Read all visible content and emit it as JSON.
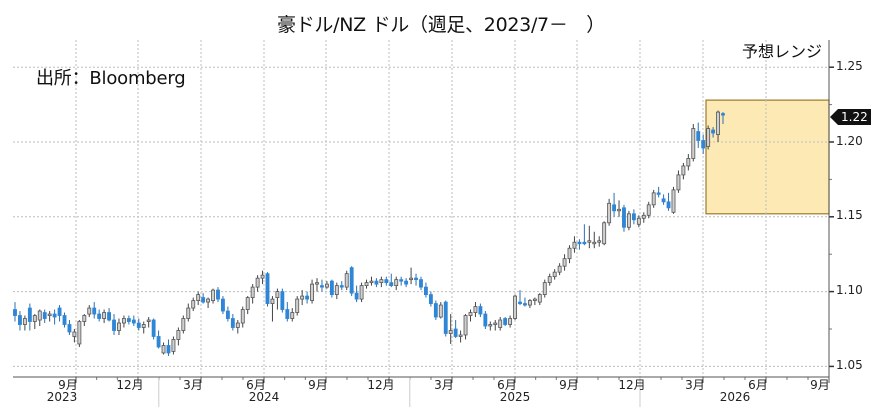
{
  "title": "豪ドル/NZ ドル（週足、2023/7－　）",
  "source_note": "出所：Bloomberg",
  "forecast_label": "予想レンジ",
  "last_price_badge": "1.22",
  "colors": {
    "up_body": "#d0d0d0",
    "up_outline": "#555555",
    "down_body": "#2f86d6",
    "forecast_fill": "#fde9b4",
    "forecast_border": "#9a7a2a",
    "grid": "#bdbdbd",
    "axis": "#555555"
  },
  "y_axis": {
    "ticks": [
      "1.25",
      "1.20",
      "1.15",
      "1.10",
      "1.05"
    ]
  },
  "x_axis": {
    "month_ticks": [
      "9月",
      "12月",
      "3月",
      "6月",
      "9月",
      "12月",
      "3月",
      "6月",
      "9月",
      "12月",
      "3月",
      "6月",
      "9月"
    ],
    "year_labels": [
      "2023",
      "2024",
      "2025",
      "2026"
    ]
  },
  "chart_data": {
    "type": "candlestick",
    "title": "豪ドル/NZ ドル（週足、2023/7－　）",
    "xlabel": "",
    "ylabel": "",
    "ylim": [
      1.043,
      1.268
    ],
    "grid": true,
    "y_ticks": [
      1.05,
      1.1,
      1.15,
      1.2,
      1.25
    ],
    "x_ticks": [
      "2023-09",
      "2023-12",
      "2024-03",
      "2024-06",
      "2024-09",
      "2024-12",
      "2025-03",
      "2025-06",
      "2025-09",
      "2025-12",
      "2026-03",
      "2026-06",
      "2026-09"
    ],
    "annotations": [
      "出所：Bloomberg",
      "予想レンジ",
      "1.22 (last price)"
    ],
    "forecast_range": {
      "label": "予想レンジ",
      "x_start": "2026-03",
      "x_end": "2026-09",
      "low": 1.152,
      "high": 1.228
    },
    "candles": [
      {
        "o": 1.088,
        "h": 1.093,
        "l": 1.08,
        "c": 1.084
      },
      {
        "o": 1.084,
        "h": 1.087,
        "l": 1.074,
        "c": 1.078
      },
      {
        "o": 1.078,
        "h": 1.084,
        "l": 1.074,
        "c": 1.082
      },
      {
        "o": 1.089,
        "h": 1.092,
        "l": 1.074,
        "c": 1.08
      },
      {
        "o": 1.08,
        "h": 1.085,
        "l": 1.075,
        "c": 1.084
      },
      {
        "o": 1.081,
        "h": 1.088,
        "l": 1.077,
        "c": 1.087
      },
      {
        "o": 1.086,
        "h": 1.088,
        "l": 1.079,
        "c": 1.082
      },
      {
        "o": 1.084,
        "h": 1.087,
        "l": 1.08,
        "c": 1.085
      },
      {
        "o": 1.085,
        "h": 1.088,
        "l": 1.078,
        "c": 1.083
      },
      {
        "o": 1.089,
        "h": 1.091,
        "l": 1.08,
        "c": 1.084
      },
      {
        "o": 1.084,
        "h": 1.086,
        "l": 1.076,
        "c": 1.078
      },
      {
        "o": 1.078,
        "h": 1.081,
        "l": 1.071,
        "c": 1.073
      },
      {
        "o": 1.07,
        "h": 1.075,
        "l": 1.066,
        "c": 1.073
      },
      {
        "o": 1.065,
        "h": 1.081,
        "l": 1.063,
        "c": 1.08
      },
      {
        "o": 1.08,
        "h": 1.085,
        "l": 1.077,
        "c": 1.084
      },
      {
        "o": 1.085,
        "h": 1.091,
        "l": 1.083,
        "c": 1.089
      },
      {
        "o": 1.089,
        "h": 1.093,
        "l": 1.082,
        "c": 1.085
      },
      {
        "o": 1.085,
        "h": 1.088,
        "l": 1.08,
        "c": 1.082
      },
      {
        "o": 1.082,
        "h": 1.088,
        "l": 1.079,
        "c": 1.086
      },
      {
        "o": 1.086,
        "h": 1.089,
        "l": 1.08,
        "c": 1.081
      },
      {
        "o": 1.081,
        "h": 1.085,
        "l": 1.071,
        "c": 1.074
      },
      {
        "o": 1.074,
        "h": 1.082,
        "l": 1.071,
        "c": 1.079
      },
      {
        "o": 1.079,
        "h": 1.084,
        "l": 1.076,
        "c": 1.082
      },
      {
        "o": 1.082,
        "h": 1.084,
        "l": 1.078,
        "c": 1.08
      },
      {
        "o": 1.081,
        "h": 1.084,
        "l": 1.077,
        "c": 1.079
      },
      {
        "o": 1.079,
        "h": 1.082,
        "l": 1.074,
        "c": 1.076
      },
      {
        "o": 1.076,
        "h": 1.08,
        "l": 1.072,
        "c": 1.078
      },
      {
        "o": 1.08,
        "h": 1.083,
        "l": 1.076,
        "c": 1.081
      },
      {
        "o": 1.081,
        "h": 1.082,
        "l": 1.068,
        "c": 1.07
      },
      {
        "o": 1.07,
        "h": 1.074,
        "l": 1.062,
        "c": 1.063
      },
      {
        "o": 1.059,
        "h": 1.066,
        "l": 1.058,
        "c": 1.064
      },
      {
        "o": 1.064,
        "h": 1.068,
        "l": 1.057,
        "c": 1.059
      },
      {
        "o": 1.06,
        "h": 1.07,
        "l": 1.058,
        "c": 1.068
      },
      {
        "o": 1.068,
        "h": 1.076,
        "l": 1.064,
        "c": 1.074
      },
      {
        "o": 1.074,
        "h": 1.084,
        "l": 1.072,
        "c": 1.082
      },
      {
        "o": 1.082,
        "h": 1.092,
        "l": 1.08,
        "c": 1.089
      },
      {
        "o": 1.089,
        "h": 1.096,
        "l": 1.087,
        "c": 1.094
      },
      {
        "o": 1.094,
        "h": 1.1,
        "l": 1.091,
        "c": 1.098
      },
      {
        "o": 1.096,
        "h": 1.099,
        "l": 1.092,
        "c": 1.093
      },
      {
        "o": 1.093,
        "h": 1.096,
        "l": 1.089,
        "c": 1.095
      },
      {
        "o": 1.094,
        "h": 1.102,
        "l": 1.092,
        "c": 1.101
      },
      {
        "o": 1.101,
        "h": 1.103,
        "l": 1.093,
        "c": 1.095
      },
      {
        "o": 1.095,
        "h": 1.097,
        "l": 1.085,
        "c": 1.087
      },
      {
        "o": 1.087,
        "h": 1.09,
        "l": 1.08,
        "c": 1.082
      },
      {
        "o": 1.082,
        "h": 1.085,
        "l": 1.074,
        "c": 1.076
      },
      {
        "o": 1.076,
        "h": 1.081,
        "l": 1.072,
        "c": 1.079
      },
      {
        "o": 1.079,
        "h": 1.09,
        "l": 1.076,
        "c": 1.088
      },
      {
        "o": 1.088,
        "h": 1.097,
        "l": 1.085,
        "c": 1.096
      },
      {
        "o": 1.096,
        "h": 1.105,
        "l": 1.092,
        "c": 1.103
      },
      {
        "o": 1.103,
        "h": 1.111,
        "l": 1.1,
        "c": 1.109
      },
      {
        "o": 1.109,
        "h": 1.114,
        "l": 1.105,
        "c": 1.111
      },
      {
        "o": 1.112,
        "h": 1.113,
        "l": 1.09,
        "c": 1.092
      },
      {
        "o": 1.092,
        "h": 1.097,
        "l": 1.08,
        "c": 1.095
      },
      {
        "o": 1.096,
        "h": 1.102,
        "l": 1.088,
        "c": 1.1
      },
      {
        "o": 1.1,
        "h": 1.102,
        "l": 1.086,
        "c": 1.088
      },
      {
        "o": 1.088,
        "h": 1.093,
        "l": 1.08,
        "c": 1.082
      },
      {
        "o": 1.082,
        "h": 1.089,
        "l": 1.08,
        "c": 1.086
      },
      {
        "o": 1.086,
        "h": 1.097,
        "l": 1.084,
        "c": 1.095
      },
      {
        "o": 1.095,
        "h": 1.101,
        "l": 1.091,
        "c": 1.097
      },
      {
        "o": 1.097,
        "h": 1.1,
        "l": 1.092,
        "c": 1.095
      },
      {
        "o": 1.094,
        "h": 1.108,
        "l": 1.092,
        "c": 1.105
      },
      {
        "o": 1.105,
        "h": 1.109,
        "l": 1.1,
        "c": 1.106
      },
      {
        "o": 1.104,
        "h": 1.108,
        "l": 1.1,
        "c": 1.103
      },
      {
        "o": 1.103,
        "h": 1.107,
        "l": 1.102,
        "c": 1.105
      },
      {
        "o": 1.107,
        "h": 1.108,
        "l": 1.096,
        "c": 1.098
      },
      {
        "o": 1.098,
        "h": 1.106,
        "l": 1.095,
        "c": 1.104
      },
      {
        "o": 1.104,
        "h": 1.107,
        "l": 1.101,
        "c": 1.103
      },
      {
        "o": 1.103,
        "h": 1.114,
        "l": 1.101,
        "c": 1.112
      },
      {
        "o": 1.116,
        "h": 1.117,
        "l": 1.097,
        "c": 1.099
      },
      {
        "o": 1.099,
        "h": 1.104,
        "l": 1.093,
        "c": 1.095
      },
      {
        "o": 1.095,
        "h": 1.106,
        "l": 1.093,
        "c": 1.104
      },
      {
        "o": 1.104,
        "h": 1.108,
        "l": 1.102,
        "c": 1.106
      },
      {
        "o": 1.106,
        "h": 1.11,
        "l": 1.104,
        "c": 1.107
      },
      {
        "o": 1.107,
        "h": 1.109,
        "l": 1.103,
        "c": 1.105
      },
      {
        "o": 1.106,
        "h": 1.11,
        "l": 1.103,
        "c": 1.108
      },
      {
        "o": 1.108,
        "h": 1.11,
        "l": 1.104,
        "c": 1.106
      },
      {
        "o": 1.106,
        "h": 1.112,
        "l": 1.103,
        "c": 1.104
      },
      {
        "o": 1.104,
        "h": 1.11,
        "l": 1.101,
        "c": 1.108
      },
      {
        "o": 1.108,
        "h": 1.11,
        "l": 1.104,
        "c": 1.107
      },
      {
        "o": 1.107,
        "h": 1.109,
        "l": 1.103,
        "c": 1.105
      },
      {
        "o": 1.108,
        "h": 1.116,
        "l": 1.105,
        "c": 1.109
      },
      {
        "o": 1.109,
        "h": 1.112,
        "l": 1.104,
        "c": 1.108
      },
      {
        "o": 1.108,
        "h": 1.11,
        "l": 1.101,
        "c": 1.103
      },
      {
        "o": 1.103,
        "h": 1.106,
        "l": 1.096,
        "c": 1.098
      },
      {
        "o": 1.098,
        "h": 1.1,
        "l": 1.09,
        "c": 1.092
      },
      {
        "o": 1.092,
        "h": 1.094,
        "l": 1.081,
        "c": 1.083
      },
      {
        "o": 1.083,
        "h": 1.093,
        "l": 1.082,
        "c": 1.091
      },
      {
        "o": 1.093,
        "h": 1.094,
        "l": 1.07,
        "c": 1.072
      },
      {
        "o": 1.072,
        "h": 1.085,
        "l": 1.065,
        "c": 1.074
      },
      {
        "o": 1.075,
        "h": 1.081,
        "l": 1.069,
        "c": 1.07
      },
      {
        "o": 1.07,
        "h": 1.074,
        "l": 1.066,
        "c": 1.071
      },
      {
        "o": 1.071,
        "h": 1.085,
        "l": 1.068,
        "c": 1.084
      },
      {
        "o": 1.084,
        "h": 1.088,
        "l": 1.08,
        "c": 1.086
      },
      {
        "o": 1.086,
        "h": 1.093,
        "l": 1.083,
        "c": 1.09
      },
      {
        "o": 1.09,
        "h": 1.092,
        "l": 1.083,
        "c": 1.085
      },
      {
        "o": 1.085,
        "h": 1.087,
        "l": 1.075,
        "c": 1.077
      },
      {
        "o": 1.077,
        "h": 1.08,
        "l": 1.074,
        "c": 1.078
      },
      {
        "o": 1.078,
        "h": 1.081,
        "l": 1.074,
        "c": 1.079
      },
      {
        "o": 1.076,
        "h": 1.083,
        "l": 1.074,
        "c": 1.081
      },
      {
        "o": 1.082,
        "h": 1.083,
        "l": 1.077,
        "c": 1.078
      },
      {
        "o": 1.078,
        "h": 1.084,
        "l": 1.076,
        "c": 1.082
      },
      {
        "o": 1.082,
        "h": 1.098,
        "l": 1.081,
        "c": 1.097
      },
      {
        "o": 1.093,
        "h": 1.101,
        "l": 1.091,
        "c": 1.092
      },
      {
        "o": 1.092,
        "h": 1.096,
        "l": 1.09,
        "c": 1.091
      },
      {
        "o": 1.091,
        "h": 1.095,
        "l": 1.089,
        "c": 1.094
      },
      {
        "o": 1.094,
        "h": 1.096,
        "l": 1.091,
        "c": 1.095
      },
      {
        "o": 1.093,
        "h": 1.099,
        "l": 1.091,
        "c": 1.098
      },
      {
        "o": 1.098,
        "h": 1.108,
        "l": 1.096,
        "c": 1.106
      },
      {
        "o": 1.106,
        "h": 1.112,
        "l": 1.104,
        "c": 1.11
      },
      {
        "o": 1.11,
        "h": 1.115,
        "l": 1.108,
        "c": 1.113
      },
      {
        "o": 1.113,
        "h": 1.119,
        "l": 1.111,
        "c": 1.117
      },
      {
        "o": 1.117,
        "h": 1.125,
        "l": 1.114,
        "c": 1.122
      },
      {
        "o": 1.122,
        "h": 1.131,
        "l": 1.119,
        "c": 1.129
      },
      {
        "o": 1.129,
        "h": 1.137,
        "l": 1.126,
        "c": 1.133
      },
      {
        "o": 1.133,
        "h": 1.135,
        "l": 1.128,
        "c": 1.132
      },
      {
        "o": 1.133,
        "h": 1.145,
        "l": 1.131,
        "c": 1.132
      },
      {
        "o": 1.133,
        "h": 1.144,
        "l": 1.129,
        "c": 1.134
      },
      {
        "o": 1.132,
        "h": 1.14,
        "l": 1.129,
        "c": 1.133
      },
      {
        "o": 1.133,
        "h": 1.137,
        "l": 1.13,
        "c": 1.134
      },
      {
        "o": 1.132,
        "h": 1.147,
        "l": 1.131,
        "c": 1.146
      },
      {
        "o": 1.146,
        "h": 1.162,
        "l": 1.144,
        "c": 1.159
      },
      {
        "o": 1.158,
        "h": 1.166,
        "l": 1.15,
        "c": 1.154
      },
      {
        "o": 1.154,
        "h": 1.161,
        "l": 1.15,
        "c": 1.155
      },
      {
        "o": 1.156,
        "h": 1.158,
        "l": 1.14,
        "c": 1.143
      },
      {
        "o": 1.143,
        "h": 1.154,
        "l": 1.141,
        "c": 1.152
      },
      {
        "o": 1.152,
        "h": 1.155,
        "l": 1.145,
        "c": 1.148
      },
      {
        "o": 1.145,
        "h": 1.151,
        "l": 1.143,
        "c": 1.149
      },
      {
        "o": 1.149,
        "h": 1.153,
        "l": 1.146,
        "c": 1.151
      },
      {
        "o": 1.151,
        "h": 1.16,
        "l": 1.149,
        "c": 1.158
      },
      {
        "o": 1.158,
        "h": 1.168,
        "l": 1.156,
        "c": 1.166
      },
      {
        "o": 1.166,
        "h": 1.17,
        "l": 1.163,
        "c": 1.165
      },
      {
        "o": 1.162,
        "h": 1.165,
        "l": 1.158,
        "c": 1.16
      },
      {
        "o": 1.16,
        "h": 1.166,
        "l": 1.154,
        "c": 1.156
      },
      {
        "o": 1.153,
        "h": 1.17,
        "l": 1.152,
        "c": 1.168
      },
      {
        "o": 1.168,
        "h": 1.181,
        "l": 1.166,
        "c": 1.178
      },
      {
        "o": 1.178,
        "h": 1.186,
        "l": 1.175,
        "c": 1.184
      },
      {
        "o": 1.184,
        "h": 1.192,
        "l": 1.181,
        "c": 1.189
      },
      {
        "o": 1.189,
        "h": 1.212,
        "l": 1.187,
        "c": 1.209
      },
      {
        "o": 1.207,
        "h": 1.213,
        "l": 1.196,
        "c": 1.201
      },
      {
        "o": 1.201,
        "h": 1.205,
        "l": 1.192,
        "c": 1.196
      },
      {
        "o": 1.197,
        "h": 1.211,
        "l": 1.195,
        "c": 1.209
      },
      {
        "o": 1.208,
        "h": 1.21,
        "l": 1.203,
        "c": 1.206
      },
      {
        "o": 1.205,
        "h": 1.221,
        "l": 1.2,
        "c": 1.22
      },
      {
        "o": 1.219,
        "h": 1.22,
        "l": 1.212,
        "c": 1.218
      }
    ]
  }
}
